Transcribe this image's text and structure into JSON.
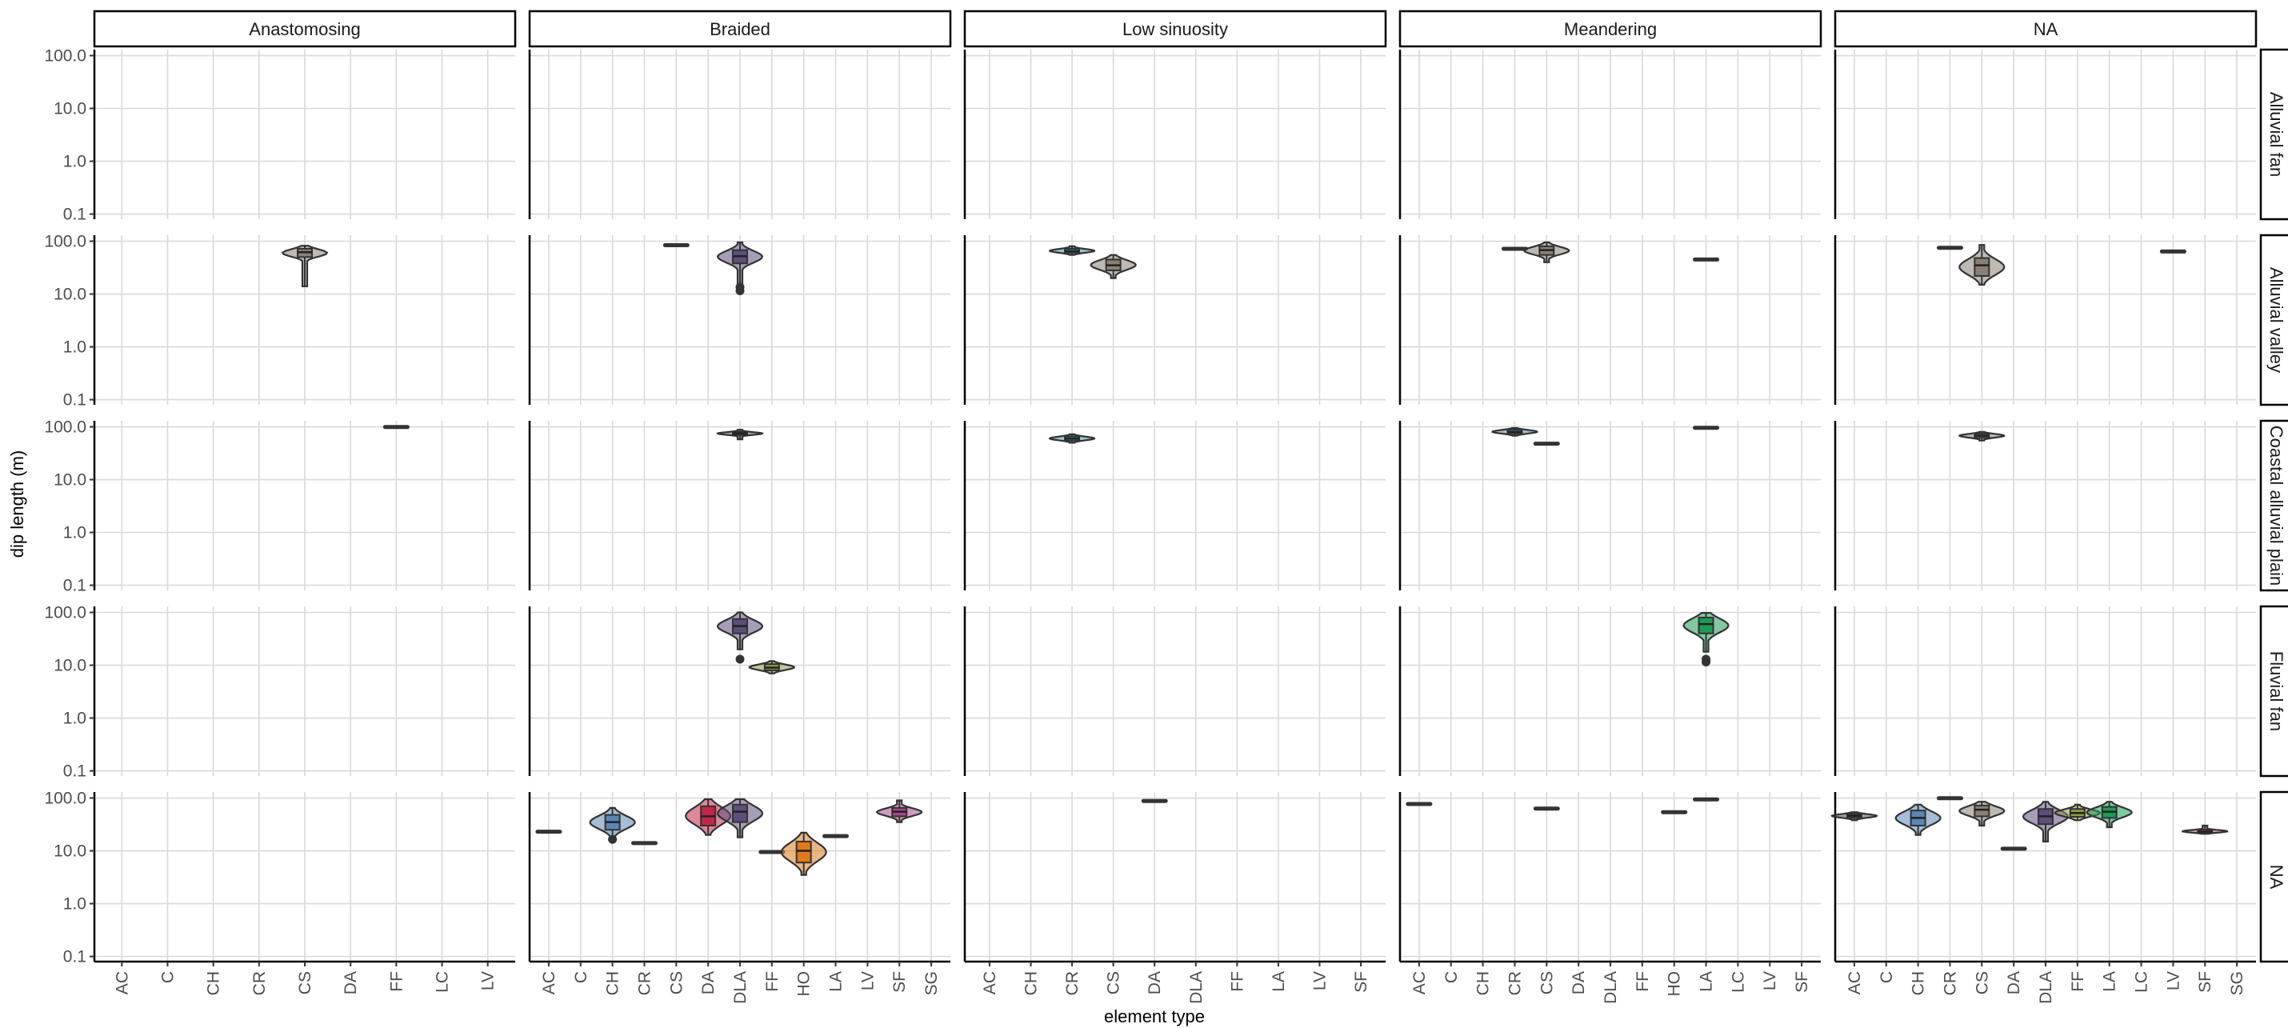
{
  "chart_data": {
    "type": "violin",
    "xlabel": "element type",
    "ylabel": "dip length (m)",
    "y_scale": "log10",
    "ylim": [
      0.08,
      130
    ],
    "yticks": [
      "0.1",
      "1.0",
      "10.0",
      "100.0"
    ],
    "yticks_values": [
      0.1,
      1,
      10,
      100
    ],
    "grid": true,
    "colors": {
      "AC": "#555555",
      "C": "#777777",
      "CH": "#5b86b5",
      "CR": "#4a90a4",
      "CS": "#8a7f74",
      "DA": "#c2264a",
      "DLA": "#5d4e7a",
      "FF": "#8f9b4a",
      "HO": "#dd7a1d",
      "LA": "#1f9a55",
      "LC": "#888888",
      "LV": "#888888",
      "SF": "#a9468c",
      "SG": "#888888"
    },
    "col_facets": [
      {
        "label": "Anastomosing",
        "categories": [
          "AC",
          "C",
          "CH",
          "CR",
          "CS",
          "DA",
          "FF",
          "LC",
          "LV"
        ]
      },
      {
        "label": "Braided",
        "categories": [
          "AC",
          "C",
          "CH",
          "CR",
          "CS",
          "DA",
          "DLA",
          "FF",
          "HO",
          "LA",
          "LV",
          "SF",
          "SG"
        ]
      },
      {
        "label": "Low sinuosity",
        "categories": [
          "AC",
          "CH",
          "CR",
          "CS",
          "DA",
          "DLA",
          "FF",
          "LA",
          "LV",
          "SF"
        ]
      },
      {
        "label": "Meandering",
        "categories": [
          "AC",
          "C",
          "CH",
          "CR",
          "CS",
          "DA",
          "DLA",
          "FF",
          "HO",
          "LA",
          "LC",
          "LV",
          "SF"
        ]
      },
      {
        "label": "NA",
        "categories": [
          "AC",
          "C",
          "CH",
          "CR",
          "CS",
          "DA",
          "DLA",
          "FF",
          "LA",
          "LC",
          "LV",
          "SF",
          "SG"
        ]
      }
    ],
    "row_facets": [
      "Alluvial fan",
      "Alluvial valley",
      "Coastal alluvial plain",
      "Fluvial fan",
      "NA"
    ],
    "groups": [
      {
        "row": 1,
        "col": 0,
        "cat": "CS",
        "min": 14,
        "q1": 50,
        "median": 62,
        "q3": 72,
        "max": 82
      },
      {
        "row": 2,
        "col": 0,
        "cat": "FF",
        "min": 95,
        "q1": 97,
        "median": 99,
        "q3": 101,
        "max": 103
      },
      {
        "row": 1,
        "col": 1,
        "cat": "CS",
        "min": 78,
        "q1": 80,
        "median": 84,
        "q3": 88,
        "max": 92
      },
      {
        "row": 1,
        "col": 1,
        "cat": "DLA",
        "min": 12,
        "q1": 38,
        "median": 52,
        "q3": 68,
        "max": 95,
        "outliers": [
          11.5,
          13.5
        ]
      },
      {
        "row": 2,
        "col": 1,
        "cat": "DLA",
        "min": 58,
        "q1": 70,
        "median": 75,
        "q3": 80,
        "max": 88
      },
      {
        "row": 3,
        "col": 1,
        "cat": "DLA",
        "min": 20,
        "q1": 40,
        "median": 55,
        "q3": 75,
        "max": 100,
        "outliers": [
          13
        ]
      },
      {
        "row": 3,
        "col": 1,
        "cat": "FF",
        "min": 7,
        "q1": 8,
        "median": 9,
        "q3": 10.5,
        "max": 12
      },
      {
        "row": 4,
        "col": 1,
        "cat": "AC",
        "min": 22,
        "q1": 22.5,
        "median": 23,
        "q3": 23.5,
        "max": 24
      },
      {
        "row": 4,
        "col": 1,
        "cat": "CH",
        "min": 18,
        "q1": 25,
        "median": 35,
        "q3": 48,
        "max": 65,
        "outliers": [
          16.5
        ]
      },
      {
        "row": 4,
        "col": 1,
        "cat": "CR",
        "min": 13.5,
        "q1": 13.8,
        "median": 14,
        "q3": 14.3,
        "max": 14.5
      },
      {
        "row": 4,
        "col": 1,
        "cat": "DA",
        "min": 20,
        "q1": 30,
        "median": 45,
        "q3": 70,
        "max": 95
      },
      {
        "row": 4,
        "col": 1,
        "cat": "DLA",
        "min": 18,
        "q1": 35,
        "median": 55,
        "q3": 75,
        "max": 95
      },
      {
        "row": 4,
        "col": 1,
        "cat": "FF",
        "min": 9,
        "q1": 9.2,
        "median": 9.5,
        "q3": 9.8,
        "max": 10
      },
      {
        "row": 4,
        "col": 1,
        "cat": "HO",
        "min": 3.5,
        "q1": 6,
        "median": 10,
        "q3": 15,
        "max": 22
      },
      {
        "row": 4,
        "col": 1,
        "cat": "LA",
        "min": 18,
        "q1": 18.5,
        "median": 19,
        "q3": 19.5,
        "max": 20
      },
      {
        "row": 4,
        "col": 1,
        "cat": "SF",
        "min": 35,
        "q1": 45,
        "median": 55,
        "q3": 65,
        "max": 90
      },
      {
        "row": 1,
        "col": 2,
        "cat": "CR",
        "min": 55,
        "q1": 60,
        "median": 65,
        "q3": 72,
        "max": 80
      },
      {
        "row": 1,
        "col": 2,
        "cat": "CS",
        "min": 20,
        "q1": 28,
        "median": 35,
        "q3": 45,
        "max": 55
      },
      {
        "row": 2,
        "col": 2,
        "cat": "CR",
        "min": 50,
        "q1": 55,
        "median": 60,
        "q3": 66,
        "max": 72
      },
      {
        "row": 4,
        "col": 2,
        "cat": "DA",
        "min": 86,
        "q1": 87,
        "median": 88,
        "q3": 89,
        "max": 90
      },
      {
        "row": 1,
        "col": 3,
        "cat": "CR",
        "min": 70,
        "q1": 71,
        "median": 72,
        "q3": 73,
        "max": 74
      },
      {
        "row": 1,
        "col": 3,
        "cat": "CS",
        "min": 40,
        "q1": 55,
        "median": 68,
        "q3": 80,
        "max": 95
      },
      {
        "row": 1,
        "col": 3,
        "cat": "LA",
        "min": 44,
        "q1": 44.5,
        "median": 45,
        "q3": 45.5,
        "max": 46
      },
      {
        "row": 2,
        "col": 3,
        "cat": "CR",
        "min": 68,
        "q1": 74,
        "median": 80,
        "q3": 88,
        "max": 95
      },
      {
        "row": 2,
        "col": 3,
        "cat": "CS",
        "min": 47,
        "q1": 47.5,
        "median": 48,
        "q3": 48.5,
        "max": 49
      },
      {
        "row": 2,
        "col": 3,
        "cat": "LA",
        "min": 88,
        "q1": 92,
        "median": 96,
        "q3": 99,
        "max": 102
      },
      {
        "row": 3,
        "col": 3,
        "cat": "LA",
        "min": 18,
        "q1": 40,
        "median": 60,
        "q3": 80,
        "max": 98,
        "outliers": [
          11.5,
          13
        ]
      },
      {
        "row": 4,
        "col": 3,
        "cat": "AC",
        "min": 68,
        "q1": 72,
        "median": 77,
        "q3": 82,
        "max": 88
      },
      {
        "row": 4,
        "col": 3,
        "cat": "CS",
        "min": 61,
        "q1": 62,
        "median": 63,
        "q3": 64,
        "max": 65
      },
      {
        "row": 4,
        "col": 3,
        "cat": "HO",
        "min": 52,
        "q1": 53,
        "median": 54,
        "q3": 55,
        "max": 56
      },
      {
        "row": 4,
        "col": 3,
        "cat": "LA",
        "min": 92,
        "q1": 93,
        "median": 94,
        "q3": 95,
        "max": 96
      },
      {
        "row": 1,
        "col": 4,
        "cat": "CR",
        "min": 73,
        "q1": 74,
        "median": 75,
        "q3": 76,
        "max": 77
      },
      {
        "row": 1,
        "col": 4,
        "cat": "CS",
        "min": 15,
        "q1": 22,
        "median": 35,
        "q3": 48,
        "max": 85
      },
      {
        "row": 1,
        "col": 4,
        "cat": "LV",
        "min": 62,
        "q1": 63,
        "median": 64,
        "q3": 65,
        "max": 66
      },
      {
        "row": 2,
        "col": 4,
        "cat": "CS",
        "min": 55,
        "q1": 62,
        "median": 68,
        "q3": 74,
        "max": 80
      },
      {
        "row": 4,
        "col": 4,
        "cat": "AC",
        "min": 38,
        "q1": 42,
        "median": 46,
        "q3": 50,
        "max": 54
      },
      {
        "row": 4,
        "col": 4,
        "cat": "CH",
        "min": 20,
        "q1": 30,
        "median": 42,
        "q3": 58,
        "max": 75
      },
      {
        "row": 4,
        "col": 4,
        "cat": "CR",
        "min": 97,
        "q1": 98,
        "median": 99,
        "q3": 100,
        "max": 101
      },
      {
        "row": 4,
        "col": 4,
        "cat": "CS",
        "min": 30,
        "q1": 45,
        "median": 60,
        "q3": 72,
        "max": 85
      },
      {
        "row": 4,
        "col": 4,
        "cat": "DA",
        "min": 10.5,
        "q1": 10.8,
        "median": 11,
        "q3": 11.2,
        "max": 11.5
      },
      {
        "row": 4,
        "col": 4,
        "cat": "DLA",
        "min": 15,
        "q1": 32,
        "median": 45,
        "q3": 62,
        "max": 85
      },
      {
        "row": 4,
        "col": 4,
        "cat": "FF",
        "min": 38,
        "q1": 44,
        "median": 52,
        "q3": 62,
        "max": 75
      },
      {
        "row": 4,
        "col": 4,
        "cat": "LA",
        "min": 28,
        "q1": 42,
        "median": 55,
        "q3": 68,
        "max": 85
      },
      {
        "row": 4,
        "col": 4,
        "cat": "SF",
        "min": 21,
        "q1": 22,
        "median": 23,
        "q3": 25,
        "max": 30
      }
    ]
  }
}
